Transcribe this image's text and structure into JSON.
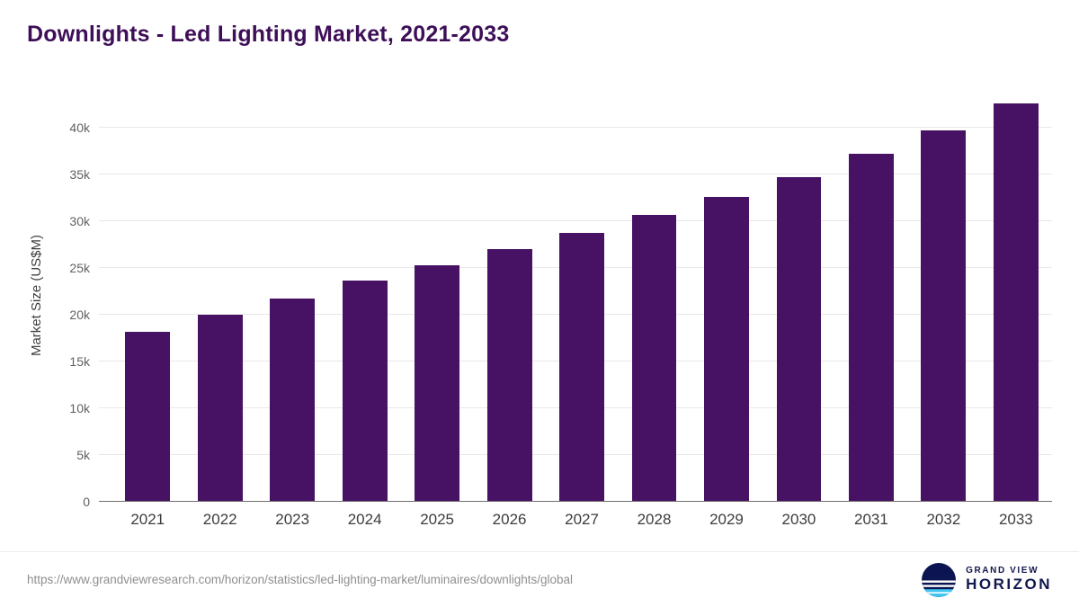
{
  "header": {
    "title": "Downlights - Led Lighting Market, 2021-2033"
  },
  "chart_data": {
    "type": "bar",
    "title": "Downlights - Led Lighting Market, 2021-2033",
    "categories": [
      "2021",
      "2022",
      "2023",
      "2024",
      "2025",
      "2026",
      "2027",
      "2028",
      "2029",
      "2030",
      "2031",
      "2032",
      "2033"
    ],
    "values": [
      18200,
      20000,
      21750,
      23650,
      25300,
      27000,
      28700,
      30600,
      32550,
      34650,
      37200,
      39700,
      42600
    ],
    "xlabel": "",
    "ylabel": "Market Size (US$M)",
    "ylim": [
      0,
      44000
    ],
    "yticks": [
      {
        "value": 0,
        "label": "0"
      },
      {
        "value": 5000,
        "label": "5k"
      },
      {
        "value": 10000,
        "label": "10k"
      },
      {
        "value": 15000,
        "label": "15k"
      },
      {
        "value": 20000,
        "label": "20k"
      },
      {
        "value": 25000,
        "label": "25k"
      },
      {
        "value": 30000,
        "label": "30k"
      },
      {
        "value": 35000,
        "label": "35k"
      },
      {
        "value": 40000,
        "label": "40k"
      }
    ],
    "grid": true,
    "legend_position": "none",
    "bar_color": "#471263",
    "title_color": "#3e0f58"
  },
  "footer": {
    "source_url": "https://www.grandviewresearch.com/horizon/statistics/led-lighting-market/luminaires/downlights/global",
    "brand": {
      "line1": "GRAND VIEW",
      "line2": "HORIZON",
      "navy_color": "#12174e",
      "cyan_color": "#3ec6f0"
    }
  }
}
